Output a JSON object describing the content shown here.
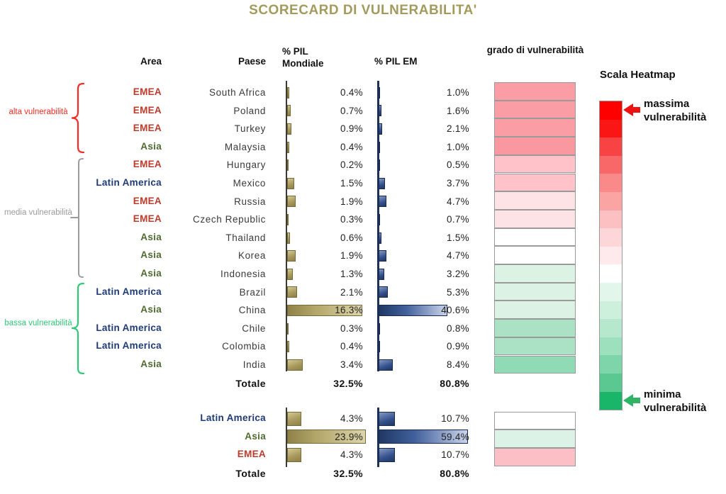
{
  "title": "SCORECARD DI VULNERABILITA'",
  "colors": {
    "title": "#A39B5D",
    "areas": {
      "EMEA": "#BE3A2B",
      "Asia": "#4E6B2F",
      "Latin America": "#1F3A78"
    }
  },
  "headers": {
    "area": "Area",
    "paese": "Paese",
    "pil_mondiale": "% PIL Mondiale",
    "pil_em": "% PIL EM",
    "grado": "grado di vulnerabilità"
  },
  "groups": [
    {
      "id": "alta",
      "label": "alta vulnerabilità",
      "color": "#FB2A21"
    },
    {
      "id": "media",
      "label": "media vulnerabilità",
      "color": "#9B9B9B"
    },
    {
      "id": "bassa",
      "label": "bassa vulnerabilità",
      "color": "#2EC877"
    }
  ],
  "chart_data": {
    "type": "table",
    "columns": [
      "Area",
      "Paese",
      "% PIL Mondiale",
      "% PIL EM",
      "grado di vulnerabilità"
    ],
    "rows": [
      {
        "area": "EMEA",
        "paese": "South Africa",
        "pil_mondiale": 0.4,
        "pil_em": 1.0,
        "heat": "#FA9DA4",
        "gruppo": "alta"
      },
      {
        "area": "EMEA",
        "paese": "Poland",
        "pil_mondiale": 0.7,
        "pil_em": 1.6,
        "heat": "#FA9DA4",
        "gruppo": "alta"
      },
      {
        "area": "EMEA",
        "paese": "Turkey",
        "pil_mondiale": 0.9,
        "pil_em": 2.1,
        "heat": "#FA9DA4",
        "gruppo": "alta"
      },
      {
        "area": "Asia",
        "paese": "Malaysia",
        "pil_mondiale": 0.4,
        "pil_em": 1.0,
        "heat": "#FA98A0",
        "gruppo": "alta"
      },
      {
        "area": "EMEA",
        "paese": "Hungary",
        "pil_mondiale": 0.2,
        "pil_em": 0.5,
        "heat": "#FEC2C8",
        "gruppo": "media"
      },
      {
        "area": "Latin America",
        "paese": "Mexico",
        "pil_mondiale": 1.5,
        "pil_em": 3.7,
        "heat": "#FEC2C8",
        "gruppo": "media"
      },
      {
        "area": "EMEA",
        "paese": "Russia",
        "pil_mondiale": 1.9,
        "pil_em": 4.7,
        "heat": "#FDE2E6",
        "gruppo": "media"
      },
      {
        "area": "EMEA",
        "paese": "Czech Republic",
        "pil_mondiale": 0.3,
        "pil_em": 0.7,
        "heat": "#FDE2E6",
        "gruppo": "media"
      },
      {
        "area": "Asia",
        "paese": "Thailand",
        "pil_mondiale": 0.6,
        "pil_em": 1.5,
        "heat": "#FFFFFF",
        "gruppo": "media"
      },
      {
        "area": "Asia",
        "paese": "Korea",
        "pil_mondiale": 1.9,
        "pil_em": 4.7,
        "heat": "#FFFFFF",
        "gruppo": "media"
      },
      {
        "area": "Asia",
        "paese": "Indonesia",
        "pil_mondiale": 1.3,
        "pil_em": 3.2,
        "heat": "#DCF2E5",
        "gruppo": "media"
      },
      {
        "area": "Latin America",
        "paese": "Brazil",
        "pil_mondiale": 2.1,
        "pil_em": 5.3,
        "heat": "#DCF2E5",
        "gruppo": "bassa"
      },
      {
        "area": "Asia",
        "paese": "China",
        "pil_mondiale": 16.3,
        "pil_em": 40.6,
        "heat": "#DCF2E5",
        "gruppo": "bassa"
      },
      {
        "area": "Latin America",
        "paese": "Chile",
        "pil_mondiale": 0.3,
        "pil_em": 0.8,
        "heat": "#ABE2C5",
        "gruppo": "bassa"
      },
      {
        "area": "Latin America",
        "paese": "Colombia",
        "pil_mondiale": 0.4,
        "pil_em": 0.9,
        "heat": "#ABE2C5",
        "gruppo": "bassa"
      },
      {
        "area": "Asia",
        "paese": "India",
        "pil_mondiale": 3.4,
        "pil_em": 8.4,
        "heat": "#90DAB5",
        "gruppo": "bassa"
      }
    ],
    "totale": {
      "label": "Totale",
      "pil_mondiale": "32.5%",
      "pil_em": "80.8%"
    },
    "summary": [
      {
        "area": "Latin America",
        "pil_mondiale": 4.3,
        "pil_em": 10.7,
        "heat": "#FFFFFF"
      },
      {
        "area": "Asia",
        "pil_mondiale": 23.9,
        "pil_em": 59.4,
        "heat": "#DDF2E6"
      },
      {
        "area": "EMEA",
        "pil_mondiale": 4.3,
        "pil_em": 10.7,
        "heat": "#FBBFC5"
      }
    ],
    "summary_totale": {
      "label": "Totale",
      "pil_mondiale": "32.5%",
      "pil_em": "80.8%"
    }
  },
  "legend": {
    "title": "Scala Heatmap",
    "max_label": "massima vulnerabilità",
    "min_label": "minima vulnerabilità",
    "max_arrow_color": "#EE1111",
    "min_arrow_color": "#2EB463",
    "scale_colors": [
      "#FF0000",
      "#FB1616",
      "#F74343",
      "#F96868",
      "#FA8A8A",
      "#FBA4A4",
      "#FCBFC2",
      "#FDD6DA",
      "#FEEAED",
      "#FFFFFF",
      "#E3F6EC",
      "#CDF0DD",
      "#B5E8CD",
      "#9CE0BE",
      "#7DD5A9",
      "#5BC892",
      "#19B569"
    ]
  }
}
